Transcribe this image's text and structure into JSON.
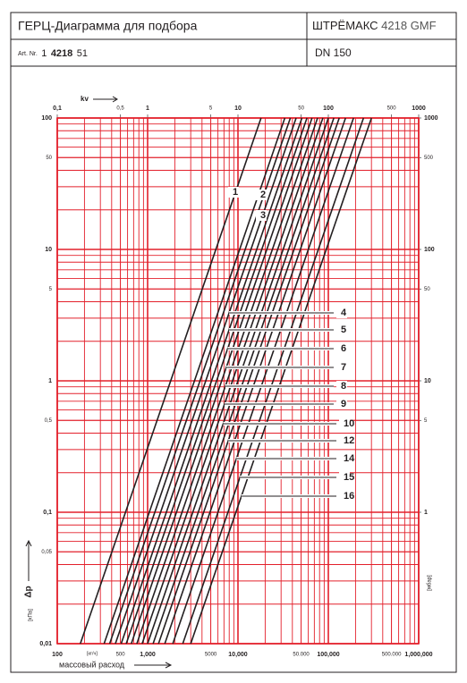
{
  "header": {
    "title": "ГЕРЦ-Диаграмма для подбора",
    "brand": "ШТРЁМАКС",
    "code": "4218 GMF",
    "art_label": "Art. Nr.",
    "art_prefix": "1",
    "art_bold": "4218",
    "art_suffix": "51",
    "dn": "DN 150"
  },
  "chart_data": {
    "type": "line",
    "xscale": "log",
    "yscale": "log",
    "grid": true,
    "grid_color": "#e3202b",
    "x_label": "массовый расход",
    "x_unit": "[кг/ч]",
    "y_label": "Δp",
    "y_unit": "[кПа]",
    "y2_unit": "[мбар]",
    "x2_label": "kv",
    "xlim": [
      100,
      1000000
    ],
    "xticks": [
      100,
      500,
      {
        "value": 1000,
        "label": "1,000"
      },
      5000,
      {
        "value": 10000,
        "label": "10,000"
      },
      {
        "value": 50000,
        "label": "50.000"
      },
      {
        "value": 100000,
        "label": "100,000"
      },
      {
        "value": 500000,
        "label": "500.000"
      },
      {
        "value": 1000000,
        "label": "1,000,000"
      }
    ],
    "x2lim": [
      0.1,
      1000
    ],
    "x2ticks": [
      {
        "value": 0.1,
        "label": "0,1"
      },
      {
        "value": 0.5,
        "label": "0,5"
      },
      1,
      5,
      10,
      50,
      100,
      500,
      1000
    ],
    "ylim": [
      0.01,
      100
    ],
    "yticks": [
      100,
      50,
      10,
      5,
      1,
      {
        "value": 0.5,
        "label": "0,5"
      },
      {
        "value": 0.1,
        "label": "0,1"
      },
      {
        "value": 0.05,
        "label": "0,05"
      },
      {
        "value": 0.01,
        "label": "0,01"
      }
    ],
    "y2lim": [
      0.1,
      1000
    ],
    "y2ticks": [
      1000,
      500,
      100,
      50,
      10,
      5,
      1
    ],
    "series": [
      {
        "name": "1",
        "color": "#231f20",
        "x": [
          180,
          18000
        ],
        "values": [
          0.01,
          100
        ]
      },
      {
        "name": "2",
        "color": "#231f20",
        "x": [
          330,
          33000
        ],
        "values": [
          0.01,
          100
        ]
      },
      {
        "name": "3",
        "color": "#231f20",
        "x": [
          380,
          38000
        ],
        "values": [
          0.01,
          100
        ]
      },
      {
        "name": "4",
        "color": "#231f20",
        "x": [
          440,
          44000
        ],
        "values": [
          0.01,
          100
        ]
      },
      {
        "name": "5",
        "color": "#231f20",
        "x": [
          510,
          51000
        ],
        "values": [
          0.01,
          100
        ]
      },
      {
        "name": "6",
        "color": "#231f20",
        "x": [
          580,
          58000
        ],
        "values": [
          0.01,
          100
        ]
      },
      {
        "name": "7",
        "color": "#231f20",
        "x": [
          660,
          66000
        ],
        "values": [
          0.01,
          100
        ]
      },
      {
        "name": "8",
        "color": "#231f20",
        "x": [
          760,
          76000
        ],
        "values": [
          0.01,
          100
        ]
      },
      {
        "name": "9",
        "color": "#231f20",
        "x": [
          870,
          87000
        ],
        "values": [
          0.01,
          100
        ]
      },
      {
        "name": "10",
        "color": "#231f20",
        "x": [
          1000,
          100000
        ],
        "values": [
          0.01,
          100
        ]
      },
      {
        "color": "#231f20",
        "x": [
          1150,
          115000
        ],
        "values": [
          0.01,
          100
        ]
      },
      {
        "name": "12",
        "color": "#231f20",
        "x": [
          1320,
          132000
        ],
        "values": [
          0.01,
          100
        ]
      },
      {
        "color": "#231f20",
        "x": [
          1550,
          155000
        ],
        "values": [
          0.01,
          100
        ]
      },
      {
        "name": "14",
        "color": "#231f20",
        "x": [
          1900,
          190000
        ],
        "values": [
          0.01,
          100
        ]
      },
      {
        "name": "15",
        "color": "#231f20",
        "x": [
          2450,
          245000
        ],
        "values": [
          0.01,
          100
        ]
      },
      {
        "name": "16",
        "color": "#231f20",
        "x": [
          3000,
          300000
        ],
        "values": [
          0.01,
          100
        ]
      }
    ]
  }
}
